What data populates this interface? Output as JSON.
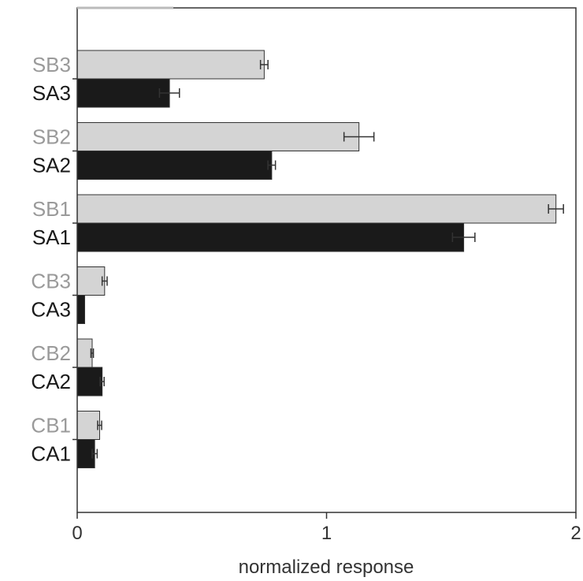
{
  "chart_data": {
    "type": "bar",
    "orientation": "horizontal",
    "xlabel": "normalized response",
    "xlim": [
      0,
      2
    ],
    "xticks": [
      0,
      1,
      2
    ],
    "grid": false,
    "colors": {
      "B": "#d4d4d4",
      "A": "#1a1a1a",
      "label_B": "#9a9a9a",
      "label_A": "#1a1a1a",
      "axis": "#333333"
    },
    "bars": [
      {
        "label": "SB3",
        "group": "B",
        "value": 0.75,
        "error": 0.015
      },
      {
        "label": "SA3",
        "group": "A",
        "value": 0.37,
        "error": 0.04
      },
      {
        "label": "SB2",
        "group": "B",
        "value": 1.13,
        "error": 0.06
      },
      {
        "label": "SA2",
        "group": "A",
        "value": 0.78,
        "error": 0.015
      },
      {
        "label": "SB1",
        "group": "B",
        "value": 1.92,
        "error": 0.03
      },
      {
        "label": "SA1",
        "group": "A",
        "value": 1.55,
        "error": 0.045
      },
      {
        "label": "CB3",
        "group": "B",
        "value": 0.11,
        "error": 0.01
      },
      {
        "label": "CA3",
        "group": "A",
        "value": 0.03,
        "error": 0
      },
      {
        "label": "CB2",
        "group": "B",
        "value": 0.06,
        "error": 0.005
      },
      {
        "label": "CA2",
        "group": "A",
        "value": 0.1,
        "error": 0.008
      },
      {
        "label": "CB1",
        "group": "B",
        "value": 0.09,
        "error": 0.008
      },
      {
        "label": "CA1",
        "group": "A",
        "value": 0.07,
        "error": 0.01
      }
    ]
  }
}
